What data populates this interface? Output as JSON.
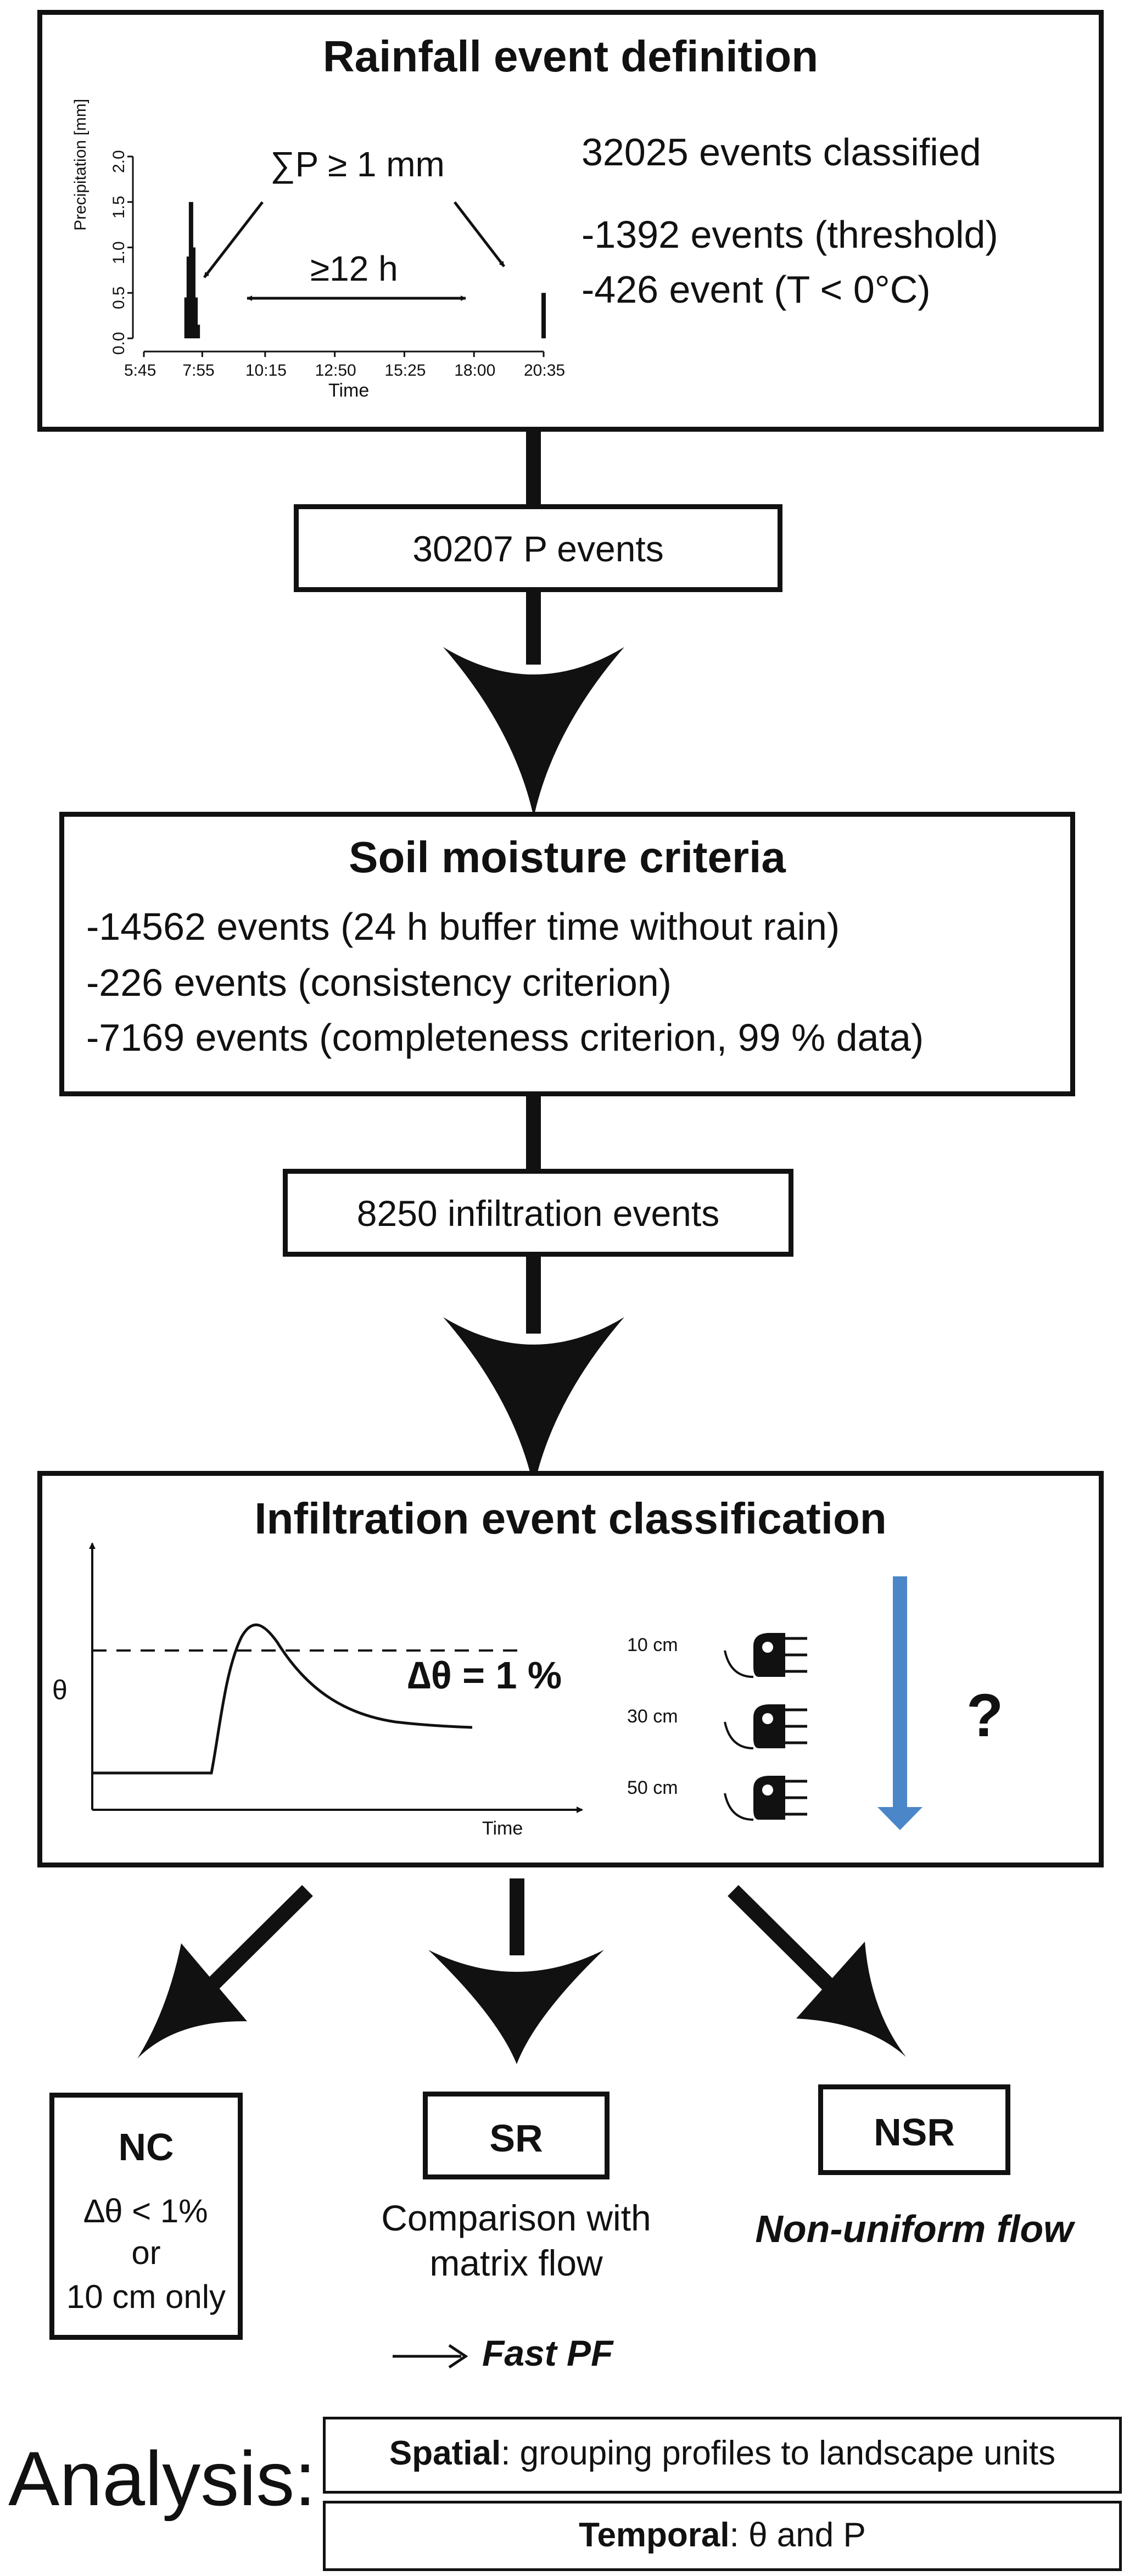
{
  "rainfall": {
    "title": "Rainfall event definition",
    "sum_label": "∑P ≥ 1 mm",
    "gap_label": "≥12 h",
    "ylabel": "Precipitation [mm]",
    "xlabel": "Time",
    "yticks": [
      "0.0",
      "0.5",
      "1.0",
      "1.5",
      "2.0"
    ],
    "xticks": [
      "5:45",
      "7:55",
      "10:15",
      "12:50",
      "15:25",
      "18:00",
      "20:35"
    ],
    "lines": [
      "32025 events classified",
      "-1392 events (threshold)",
      "-426 event (T < 0°C)"
    ]
  },
  "chart_data": {
    "type": "bar",
    "title": "",
    "xlabel": "Time",
    "ylabel": "Precipitation [mm]",
    "ylim": [
      0,
      2
    ],
    "x": [
      "7:20",
      "7:25",
      "7:30",
      "7:35",
      "7:40",
      "7:45",
      "20:35"
    ],
    "values": [
      0.45,
      0.9,
      1.5,
      1.0,
      0.45,
      0.15,
      0.5
    ]
  },
  "flow1": {
    "label": "30207 P events"
  },
  "soil": {
    "title": "Soil moisture criteria",
    "lines": [
      "-14562 events (24 h buffer time without rain)",
      "-226 events (consistency criterion)",
      "-7169 events (completeness criterion, 99 % data)"
    ]
  },
  "flow2": {
    "label": "8250 infiltration events"
  },
  "infil": {
    "title": "Infiltration event classification",
    "theta_label": "θ",
    "time_label": "Time",
    "delta_label": "∆θ = 1 %",
    "depths": [
      "10 cm",
      "30 cm",
      "50 cm"
    ],
    "question": "?"
  },
  "outcomes": {
    "nc": {
      "code": "NC",
      "desc1": "∆θ < 1%",
      "desc2": "or",
      "desc3": "10 cm only"
    },
    "sr": {
      "code": "SR",
      "desc1": "Comparison with",
      "desc2": "matrix flow",
      "result": "Fast PF"
    },
    "nsr": {
      "code": "NSR",
      "desc": "Non-uniform flow"
    }
  },
  "analysis": {
    "label": "Analysis:",
    "spatial_key": "Spatial",
    "spatial_text": ": grouping profiles to landscape units",
    "temporal_key": "Temporal",
    "temporal_text": ": θ and P"
  },
  "colors": {
    "line": "#111111",
    "down_arrow": "#4a86c8",
    "background": "#ffffff"
  }
}
